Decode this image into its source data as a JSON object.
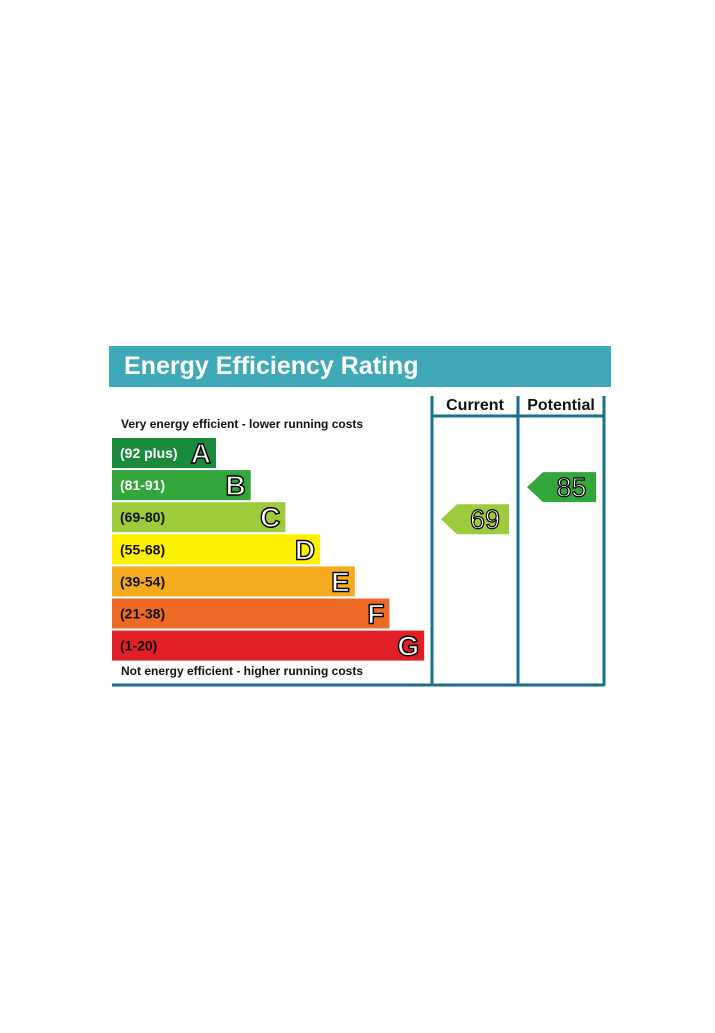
{
  "title": "Energy Efficiency Rating",
  "columns": {
    "current": "Current",
    "potential": "Potential"
  },
  "top_caption": "Very energy efficient - lower running costs",
  "bottom_caption": "Not energy efficient - higher running costs",
  "colors": {
    "title_bg": "#3fa9b8",
    "frame": "#1a6f8e"
  },
  "chart_data": {
    "type": "bar",
    "title": "Energy Efficiency Rating",
    "categories": [
      "A",
      "B",
      "C",
      "D",
      "E",
      "F",
      "G"
    ],
    "bands": [
      {
        "letter": "A",
        "range": "(92 plus)",
        "min": 92,
        "max": 100,
        "color": "#1a8a3c",
        "range_text_color": "#ffffff"
      },
      {
        "letter": "B",
        "range": "(81-91)",
        "min": 81,
        "max": 91,
        "color": "#32a63a",
        "range_text_color": "#ffffff"
      },
      {
        "letter": "C",
        "range": "(69-80)",
        "min": 69,
        "max": 80,
        "color": "#9ccb3b",
        "range_text_color": "#111111"
      },
      {
        "letter": "D",
        "range": "(55-68)",
        "min": 55,
        "max": 68,
        "color": "#fdf000",
        "range_text_color": "#111111"
      },
      {
        "letter": "E",
        "range": "(39-54)",
        "min": 39,
        "max": 54,
        "color": "#f5ab20",
        "range_text_color": "#111111"
      },
      {
        "letter": "F",
        "range": "(21-38)",
        "min": 21,
        "max": 38,
        "color": "#ec6a26",
        "range_text_color": "#111111"
      },
      {
        "letter": "G",
        "range": "(1-20)",
        "min": 1,
        "max": 20,
        "color": "#e11f26",
        "range_text_color": "#111111"
      }
    ],
    "ratings": {
      "current": {
        "value": 69,
        "band": "C",
        "color": "#9ccb3b"
      },
      "potential": {
        "value": 85,
        "band": "B",
        "color": "#32a63a"
      }
    }
  }
}
